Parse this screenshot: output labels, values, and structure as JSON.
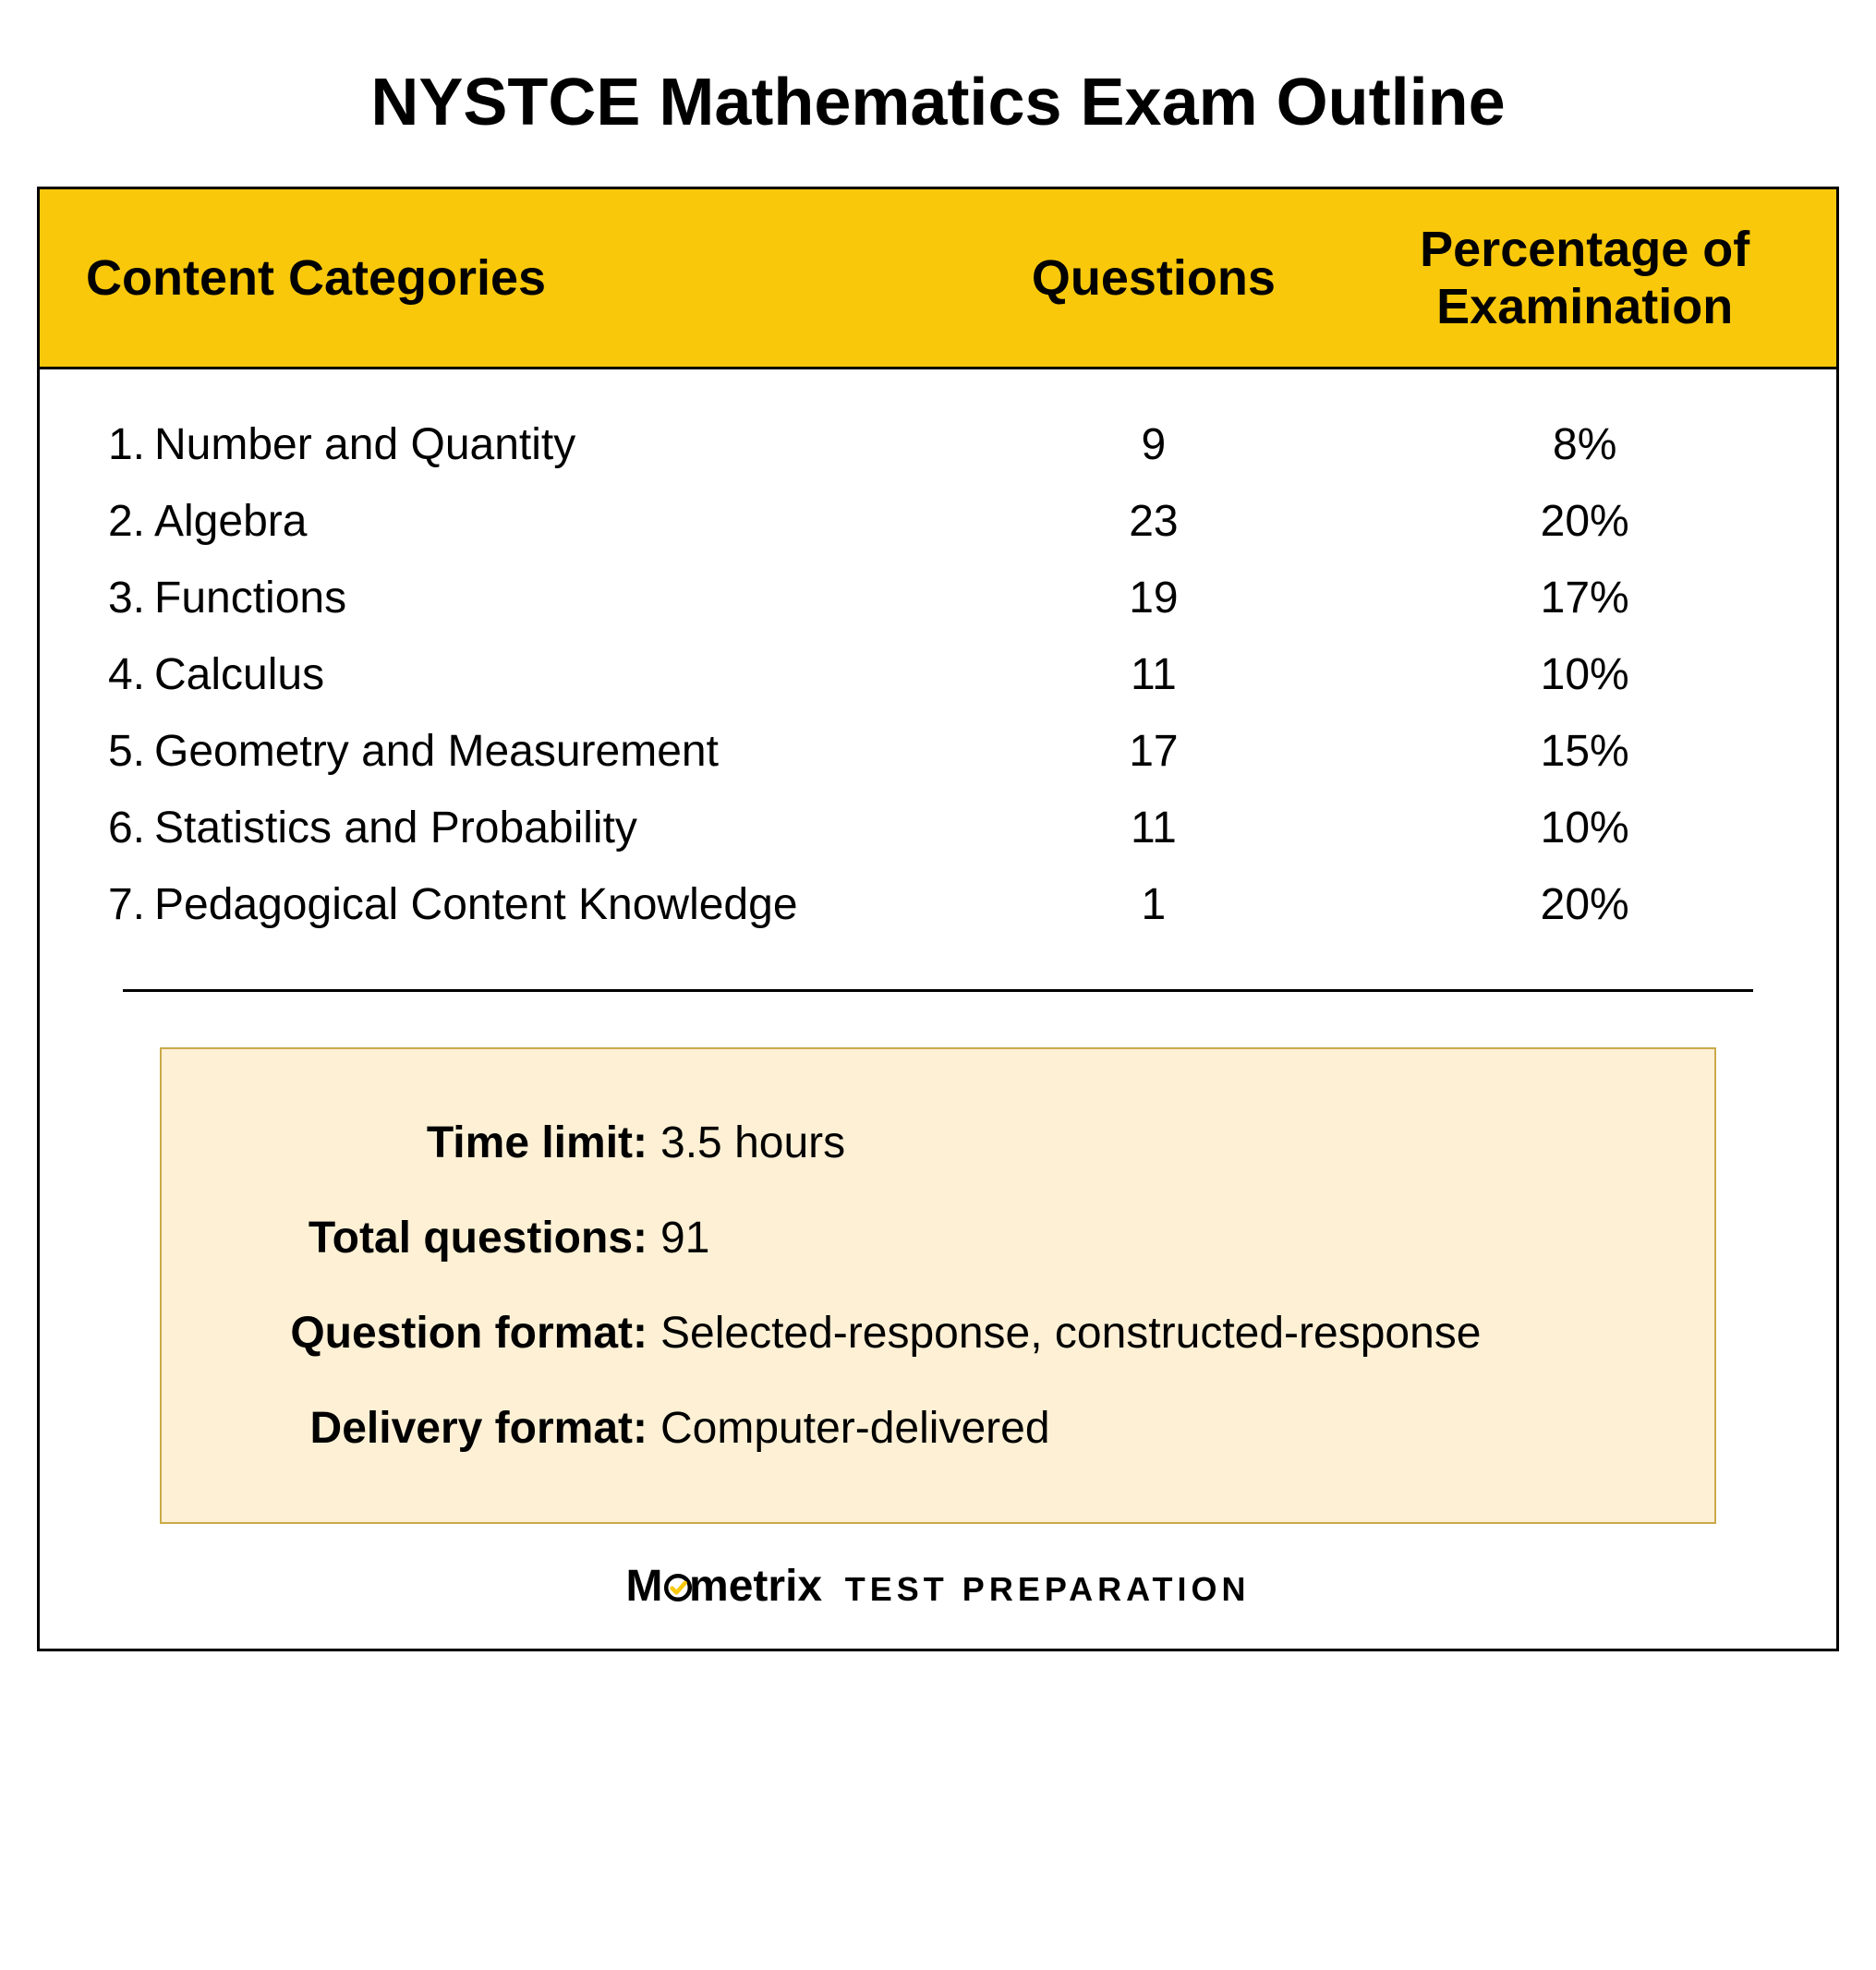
{
  "title": "NYSTCE Mathematics Exam Outline",
  "headers": {
    "categories": "Content Categories",
    "questions": "Questions",
    "percentage": "Percentage of Examination"
  },
  "rows": [
    {
      "num": "1.",
      "name": "Number and Quantity",
      "q": "9",
      "pct": "8%"
    },
    {
      "num": "2.",
      "name": "Algebra",
      "q": "23",
      "pct": "20%"
    },
    {
      "num": "3.",
      "name": "Functions",
      "q": "19",
      "pct": "17%"
    },
    {
      "num": "4.",
      "name": "Calculus",
      "q": "11",
      "pct": "10%"
    },
    {
      "num": "5.",
      "name": "Geometry and Measurement",
      "q": "17",
      "pct": "15%"
    },
    {
      "num": "6.",
      "name": "Statistics and Probability",
      "q": "11",
      "pct": "10%"
    },
    {
      "num": "7.",
      "name": "Pedagogical Content Knowledge",
      "q": "1",
      "pct": "20%"
    }
  ],
  "info": [
    {
      "label": "Time limit:",
      "value": "3.5 hours"
    },
    {
      "label": "Total questions:",
      "value": "91"
    },
    {
      "label": "Question format:",
      "value": "Selected-response, constructed-response"
    },
    {
      "label": "Delivery format:",
      "value": "Computer-delivered"
    }
  ],
  "logo": {
    "brand_pre": "M",
    "brand_post": "metrix",
    "tagline": "TEST  PREPARATION"
  },
  "colors": {
    "header_bg": "#f9c80b",
    "info_bg": "#fdf0d5",
    "info_border": "#cba94a",
    "check_stroke": "#f9c80b"
  }
}
